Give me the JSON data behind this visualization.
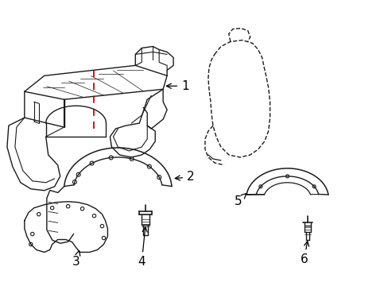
{
  "background_color": "#ffffff",
  "line_color": "#1a1a1a",
  "red_color": "#cc0000",
  "fig_width": 4.89,
  "fig_height": 3.6,
  "dpi": 100
}
